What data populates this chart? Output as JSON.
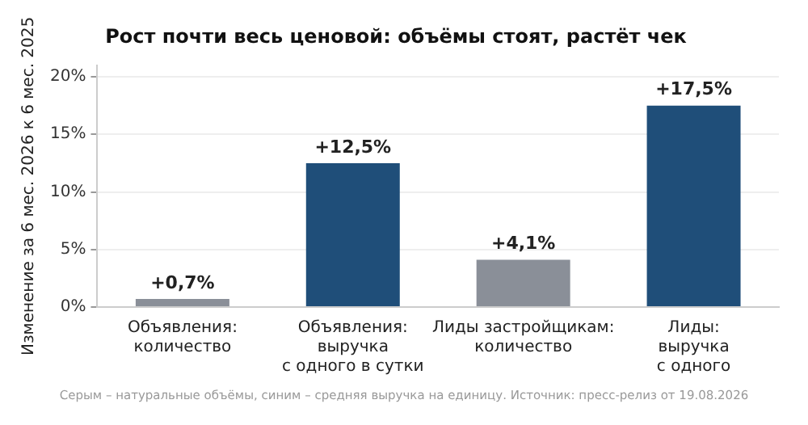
{
  "chart_data": {
    "type": "bar",
    "title": "Рост почти весь ценовой: объёмы стоят, растёт чек",
    "ylabel": "Изменение за 6 мес. 2026 к 6 мес. 2025",
    "categories": [
      "Объявления:\nколичество",
      "Объявления:\nвыручка\nс одного в сутки",
      "Лиды застройщикам:\nколичество",
      "Лиды:\nвыручка\nс одного"
    ],
    "values": [
      0.7,
      12.5,
      4.1,
      17.5
    ],
    "colors": [
      "#8a8f98",
      "#1f4e79",
      "#8a8f98",
      "#1f4e79"
    ],
    "value_labels": [
      "+0,7%",
      "+12,5%",
      "+4,1%",
      "+17,5%"
    ],
    "ylim": [
      0,
      21
    ],
    "yticks": [
      {
        "value": 0,
        "label": "0%"
      },
      {
        "value": 5,
        "label": "5%"
      },
      {
        "value": 10,
        "label": "10%"
      },
      {
        "value": 15,
        "label": "15%"
      },
      {
        "value": 20,
        "label": "20%"
      }
    ],
    "grid": "y",
    "legend": false,
    "annotations": [
      "Серым – натуральные объёмы, синим – средняя выручка на единицу. Источник: пресс-релиз от 19.08.2026"
    ]
  }
}
